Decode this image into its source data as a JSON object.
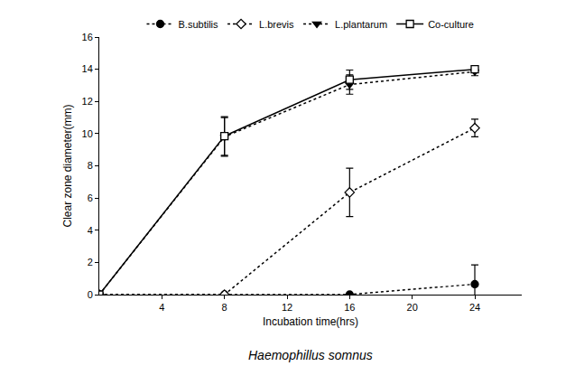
{
  "chart_data": {
    "type": "line",
    "title": "Haemophillus somnus",
    "x_label": "Incubation time(hrs)",
    "y_label": "Clear zone diameter(mm)",
    "x": [
      0,
      8,
      16,
      24
    ],
    "series": [
      {
        "name": "B.subtilis",
        "color": "#000000",
        "marker": "circle",
        "line_style": "dot",
        "values": [
          0,
          0,
          0,
          0.65
        ],
        "error": [
          0,
          0,
          0,
          1.2
        ]
      },
      {
        "name": "L.brevis",
        "color": "#000000",
        "marker": "diamond-open",
        "line_style": "dot",
        "values": [
          0,
          0,
          6.35,
          10.35
        ],
        "error": [
          0,
          0,
          1.5,
          0.55
        ]
      },
      {
        "name": "L.plantarum",
        "color": "#000000",
        "marker": "triangle-down",
        "line_style": "dot",
        "values": [
          0,
          9.8,
          13.05,
          13.85
        ],
        "error": [
          0,
          1.2,
          0.6,
          0.25
        ]
      },
      {
        "name": "Co-culture",
        "color": "#000000",
        "marker": "square-open",
        "line_style": "solid",
        "values": [
          0,
          9.85,
          13.35,
          14.0
        ],
        "error": [
          0,
          1.2,
          0.6,
          0.1
        ]
      }
    ],
    "xlim": [
      0,
      27
    ],
    "xticks": [
      4,
      8,
      12,
      16,
      20,
      24
    ],
    "ylim": [
      0,
      16
    ],
    "yticks": [
      0,
      2,
      4,
      6,
      8,
      10,
      12,
      14,
      16
    ],
    "grid": false,
    "legend": "top"
  }
}
